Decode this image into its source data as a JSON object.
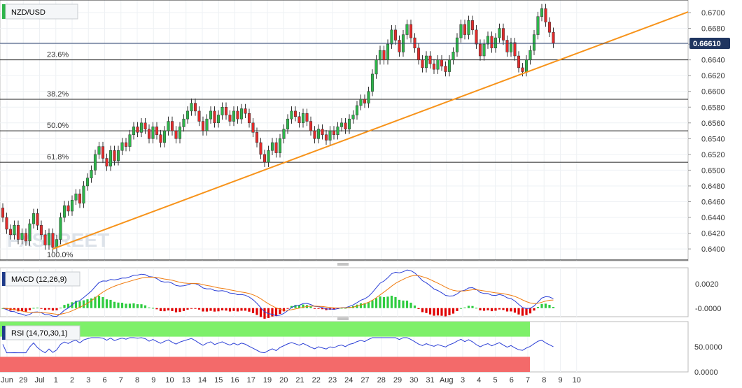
{
  "chart_data": {
    "type": "candlestick",
    "title": "NZD/USD",
    "price_tag": "0.66610",
    "current_price": 0.6661,
    "watermark": "FXSTREET",
    "price_axis": {
      "range": [
        0.6385,
        0.6716
      ],
      "ticks": [
        "0.6400",
        "0.6420",
        "0.6440",
        "0.6460",
        "0.6480",
        "0.6500",
        "0.6520",
        "0.6540",
        "0.6560",
        "0.6580",
        "0.6600",
        "0.6620",
        "0.6640",
        "0.6660",
        "0.6680",
        "0.6700"
      ]
    },
    "time_axis": {
      "labels": [
        "Jun",
        "29",
        "Jul",
        "1",
        "2",
        "3",
        "6",
        "7",
        "8",
        "9",
        "10",
        "13",
        "14",
        "15",
        "16",
        "17",
        "19",
        "20",
        "21",
        "22",
        "23",
        "24",
        "27",
        "28",
        "29",
        "30",
        "31",
        "Aug",
        "3",
        "4",
        "5",
        "6",
        "7",
        "8",
        "9",
        "10"
      ]
    },
    "fibonacci": [
      {
        "label": "23.6%",
        "level": 0.664
      },
      {
        "label": "38.2%",
        "level": 0.659
      },
      {
        "label": "50.0%",
        "level": 0.655
      },
      {
        "label": "61.8%",
        "level": 0.651
      },
      {
        "label": "100.0%",
        "level": 0.6386
      }
    ],
    "top_line_level": 0.6716,
    "trendline": {
      "start": {
        "x": 13,
        "y": 0.64
      },
      "end": {
        "x": 183,
        "y": 0.671
      },
      "color": "#f7931a"
    },
    "candles_open_close": [
      [
        0.6452,
        0.644
      ],
      [
        0.644,
        0.6425
      ],
      [
        0.6425,
        0.6418
      ],
      [
        0.6418,
        0.643
      ],
      [
        0.643,
        0.6412
      ],
      [
        0.6412,
        0.642
      ],
      [
        0.642,
        0.641
      ],
      [
        0.641,
        0.6432
      ],
      [
        0.6432,
        0.6445
      ],
      [
        0.6445,
        0.643
      ],
      [
        0.643,
        0.6418
      ],
      [
        0.6418,
        0.6405
      ],
      [
        0.6405,
        0.642
      ],
      [
        0.642,
        0.6402
      ],
      [
        0.6402,
        0.6412
      ],
      [
        0.6412,
        0.644
      ],
      [
        0.644,
        0.6455
      ],
      [
        0.6455,
        0.6448
      ],
      [
        0.6448,
        0.6462
      ],
      [
        0.6462,
        0.647
      ],
      [
        0.647,
        0.6458
      ],
      [
        0.6458,
        0.648
      ],
      [
        0.648,
        0.649
      ],
      [
        0.649,
        0.65
      ],
      [
        0.65,
        0.652
      ],
      [
        0.652,
        0.653
      ],
      [
        0.653,
        0.6515
      ],
      [
        0.6515,
        0.6505
      ],
      [
        0.6505,
        0.6525
      ],
      [
        0.6525,
        0.6512
      ],
      [
        0.6512,
        0.6525
      ],
      [
        0.6525,
        0.6535
      ],
      [
        0.6535,
        0.653
      ],
      [
        0.653,
        0.6545
      ],
      [
        0.6545,
        0.6555
      ],
      [
        0.6555,
        0.6548
      ],
      [
        0.6548,
        0.656
      ],
      [
        0.656,
        0.6552
      ],
      [
        0.6552,
        0.654
      ],
      [
        0.654,
        0.6555
      ],
      [
        0.6555,
        0.6545
      ],
      [
        0.6545,
        0.6535
      ],
      [
        0.6535,
        0.655
      ],
      [
        0.655,
        0.6562
      ],
      [
        0.6562,
        0.655
      ],
      [
        0.655,
        0.654
      ],
      [
        0.654,
        0.6555
      ],
      [
        0.6555,
        0.6565
      ],
      [
        0.6565,
        0.6575
      ],
      [
        0.6575,
        0.6585
      ],
      [
        0.6585,
        0.6575
      ],
      [
        0.6575,
        0.6562
      ],
      [
        0.6562,
        0.655
      ],
      [
        0.655,
        0.6565
      ],
      [
        0.6565,
        0.6575
      ],
      [
        0.6575,
        0.656
      ],
      [
        0.656,
        0.657
      ],
      [
        0.657,
        0.658
      ],
      [
        0.658,
        0.657
      ],
      [
        0.657,
        0.6562
      ],
      [
        0.6562,
        0.6575
      ],
      [
        0.6575,
        0.6565
      ],
      [
        0.6565,
        0.6578
      ],
      [
        0.6578,
        0.6572
      ],
      [
        0.6572,
        0.656
      ],
      [
        0.656,
        0.6548
      ],
      [
        0.6548,
        0.6535
      ],
      [
        0.6535,
        0.652
      ],
      [
        0.652,
        0.651
      ],
      [
        0.651,
        0.6525
      ],
      [
        0.6525,
        0.6535
      ],
      [
        0.6535,
        0.6522
      ],
      [
        0.6522,
        0.654
      ],
      [
        0.654,
        0.6552
      ],
      [
        0.6552,
        0.6565
      ],
      [
        0.6565,
        0.6575
      ],
      [
        0.6575,
        0.6568
      ],
      [
        0.6568,
        0.656
      ],
      [
        0.656,
        0.6572
      ],
      [
        0.6572,
        0.6562
      ],
      [
        0.6562,
        0.655
      ],
      [
        0.655,
        0.654
      ],
      [
        0.654,
        0.6552
      ],
      [
        0.6552,
        0.6545
      ],
      [
        0.6545,
        0.6538
      ],
      [
        0.6538,
        0.655
      ],
      [
        0.655,
        0.6545
      ],
      [
        0.6545,
        0.6555
      ],
      [
        0.6555,
        0.656
      ],
      [
        0.656,
        0.6552
      ],
      [
        0.6552,
        0.6565
      ],
      [
        0.6565,
        0.657
      ],
      [
        0.657,
        0.6582
      ],
      [
        0.6582,
        0.659
      ],
      [
        0.659,
        0.6585
      ],
      [
        0.6585,
        0.66
      ],
      [
        0.66,
        0.6622
      ],
      [
        0.6622,
        0.664
      ],
      [
        0.664,
        0.6652
      ],
      [
        0.6652,
        0.664
      ],
      [
        0.664,
        0.666
      ],
      [
        0.666,
        0.6678
      ],
      [
        0.6678,
        0.6665
      ],
      [
        0.6665,
        0.665
      ],
      [
        0.665,
        0.6672
      ],
      [
        0.6672,
        0.6685
      ],
      [
        0.6685,
        0.6668
      ],
      [
        0.6668,
        0.6655
      ],
      [
        0.6655,
        0.664
      ],
      [
        0.664,
        0.663
      ],
      [
        0.663,
        0.6645
      ],
      [
        0.6645,
        0.6635
      ],
      [
        0.6635,
        0.6628
      ],
      [
        0.6628,
        0.664
      ],
      [
        0.664,
        0.6632
      ],
      [
        0.6632,
        0.6625
      ],
      [
        0.6625,
        0.664
      ],
      [
        0.664,
        0.665
      ],
      [
        0.665,
        0.6668
      ],
      [
        0.6668,
        0.6685
      ],
      [
        0.6685,
        0.6672
      ],
      [
        0.6672,
        0.669
      ],
      [
        0.669,
        0.6678
      ],
      [
        0.6678,
        0.666
      ],
      [
        0.666,
        0.6645
      ],
      [
        0.6645,
        0.666
      ],
      [
        0.666,
        0.667
      ],
      [
        0.667,
        0.6655
      ],
      [
        0.6655,
        0.6668
      ],
      [
        0.6668,
        0.668
      ],
      [
        0.668,
        0.6665
      ],
      [
        0.6665,
        0.665
      ],
      [
        0.665,
        0.6662
      ],
      [
        0.6662,
        0.6645
      ],
      [
        0.6645,
        0.663
      ],
      [
        0.663,
        0.6625
      ],
      [
        0.6625,
        0.664
      ],
      [
        0.664,
        0.6652
      ],
      [
        0.6652,
        0.6672
      ],
      [
        0.6672,
        0.6695
      ],
      [
        0.6695,
        0.6705
      ],
      [
        0.6705,
        0.6688
      ],
      [
        0.6688,
        0.6675
      ],
      [
        0.6675,
        0.6661
      ]
    ],
    "macd": {
      "label": "MACD (12,26,9)",
      "range": [
        -0.0007,
        0.0033
      ],
      "ticks": [
        "0.0020",
        "-0.0000"
      ]
    },
    "rsi": {
      "label": "RSI (14,70,30,1)",
      "range": [
        0,
        100
      ],
      "overbought": 70,
      "oversold": 30,
      "ticks": [
        "50.0000",
        "0.0000"
      ]
    }
  }
}
